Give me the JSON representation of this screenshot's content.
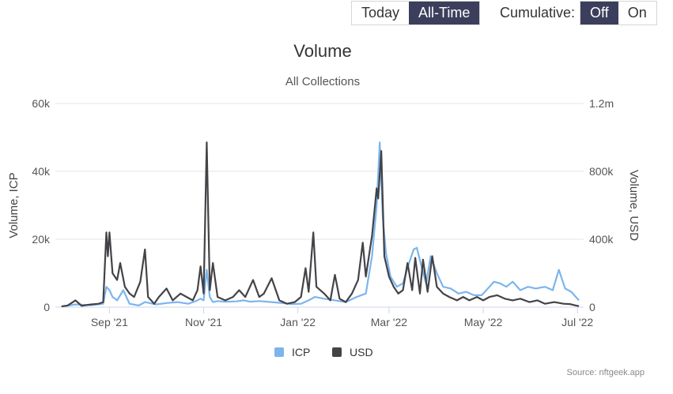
{
  "controls": {
    "range_buttons": [
      {
        "label": "Today",
        "active": false
      },
      {
        "label": "All-Time",
        "active": true
      }
    ],
    "cumulative_label": "Cumulative:",
    "cumulative_buttons": [
      {
        "label": "Off",
        "active": true
      },
      {
        "label": "On",
        "active": false
      }
    ]
  },
  "chart_data": {
    "type": "line",
    "title": "Volume",
    "subtitle": "All Collections",
    "y_left": {
      "label": "Volume, ICP",
      "ticks": [
        "0",
        "20k",
        "40k",
        "60k"
      ],
      "range": [
        0,
        60000
      ]
    },
    "y_right": {
      "label": "Volume, USD",
      "ticks": [
        "0",
        "400k",
        "800k",
        "1.2m"
      ],
      "range": [
        0,
        1200000
      ]
    },
    "x_ticks": [
      {
        "date": "2021-09-01",
        "label": "Sep '21"
      },
      {
        "date": "2021-11-01",
        "label": "Nov '21"
      },
      {
        "date": "2022-01-01",
        "label": "Jan '22"
      },
      {
        "date": "2022-03-01",
        "label": "Mar '22"
      },
      {
        "date": "2022-05-01",
        "label": "May '22"
      },
      {
        "date": "2022-07-01",
        "label": "Jul '22"
      }
    ],
    "x_range": [
      "2021-07-28",
      "2022-07-05"
    ],
    "grid": true,
    "legend_position": "bottom-center",
    "credit": "Source: nftgeek.app",
    "series": [
      {
        "name": "ICP",
        "axis": "left",
        "color": "#7cb5ec",
        "points": [
          [
            "2021-08-01",
            200
          ],
          [
            "2021-08-10",
            800
          ],
          [
            "2021-08-20",
            600
          ],
          [
            "2021-08-28",
            1000
          ],
          [
            "2021-08-30",
            6000
          ],
          [
            "2021-09-01",
            5000
          ],
          [
            "2021-09-03",
            3000
          ],
          [
            "2021-09-06",
            2000
          ],
          [
            "2021-09-10",
            5000
          ],
          [
            "2021-09-14",
            1000
          ],
          [
            "2021-09-20",
            500
          ],
          [
            "2021-09-24",
            1500
          ],
          [
            "2021-10-01",
            800
          ],
          [
            "2021-10-08",
            1200
          ],
          [
            "2021-10-15",
            1500
          ],
          [
            "2021-10-22",
            1000
          ],
          [
            "2021-10-27",
            1800
          ],
          [
            "2021-10-30",
            2500
          ],
          [
            "2021-11-01",
            2000
          ],
          [
            "2021-11-03",
            11000
          ],
          [
            "2021-11-05",
            3000
          ],
          [
            "2021-11-07",
            1500
          ],
          [
            "2021-11-10",
            1800
          ],
          [
            "2021-11-15",
            1600
          ],
          [
            "2021-11-22",
            1700
          ],
          [
            "2021-11-27",
            2000
          ],
          [
            "2021-12-01",
            1600
          ],
          [
            "2021-12-07",
            1800
          ],
          [
            "2021-12-15",
            1500
          ],
          [
            "2021-12-22",
            1200
          ],
          [
            "2021-12-28",
            900
          ],
          [
            "2022-01-03",
            1000
          ],
          [
            "2022-01-08",
            2000
          ],
          [
            "2022-01-12",
            3000
          ],
          [
            "2022-01-18",
            2500
          ],
          [
            "2022-01-25",
            2000
          ],
          [
            "2022-02-01",
            1500
          ],
          [
            "2022-02-08",
            3000
          ],
          [
            "2022-02-14",
            4000
          ],
          [
            "2022-02-18",
            15000
          ],
          [
            "2022-02-21",
            30000
          ],
          [
            "2022-02-23",
            48500
          ],
          [
            "2022-02-25",
            26000
          ],
          [
            "2022-02-27",
            16000
          ],
          [
            "2022-03-02",
            9000
          ],
          [
            "2022-03-06",
            6000
          ],
          [
            "2022-03-10",
            7000
          ],
          [
            "2022-03-14",
            13000
          ],
          [
            "2022-03-17",
            17000
          ],
          [
            "2022-03-19",
            17500
          ],
          [
            "2022-03-22",
            12000
          ],
          [
            "2022-03-25",
            7000
          ],
          [
            "2022-03-28",
            15000
          ],
          [
            "2022-04-01",
            10000
          ],
          [
            "2022-04-05",
            6000
          ],
          [
            "2022-04-10",
            5500
          ],
          [
            "2022-04-15",
            4000
          ],
          [
            "2022-04-20",
            4500
          ],
          [
            "2022-04-25",
            3500
          ],
          [
            "2022-04-30",
            3500
          ],
          [
            "2022-05-04",
            5500
          ],
          [
            "2022-05-08",
            7500
          ],
          [
            "2022-05-12",
            7000
          ],
          [
            "2022-05-16",
            6000
          ],
          [
            "2022-05-20",
            7500
          ],
          [
            "2022-05-25",
            5000
          ],
          [
            "2022-05-30",
            6000
          ],
          [
            "2022-06-04",
            5500
          ],
          [
            "2022-06-10",
            6000
          ],
          [
            "2022-06-15",
            5000
          ],
          [
            "2022-06-19",
            11000
          ],
          [
            "2022-06-23",
            5500
          ],
          [
            "2022-06-27",
            4500
          ],
          [
            "2022-06-30",
            3000
          ],
          [
            "2022-07-02",
            2000
          ]
        ]
      },
      {
        "name": "USD",
        "axis": "right",
        "color": "#434348",
        "points": [
          [
            "2021-08-01",
            4000
          ],
          [
            "2021-08-05",
            10000
          ],
          [
            "2021-08-10",
            40000
          ],
          [
            "2021-08-14",
            8000
          ],
          [
            "2021-08-20",
            16000
          ],
          [
            "2021-08-25",
            20000
          ],
          [
            "2021-08-28",
            30000
          ],
          [
            "2021-08-30",
            440000
          ],
          [
            "2021-08-31",
            300000
          ],
          [
            "2021-09-01",
            440000
          ],
          [
            "2021-09-03",
            200000
          ],
          [
            "2021-09-06",
            160000
          ],
          [
            "2021-09-08",
            260000
          ],
          [
            "2021-09-11",
            120000
          ],
          [
            "2021-09-14",
            80000
          ],
          [
            "2021-09-17",
            60000
          ],
          [
            "2021-09-21",
            150000
          ],
          [
            "2021-09-24",
            340000
          ],
          [
            "2021-09-26",
            60000
          ],
          [
            "2021-09-30",
            20000
          ],
          [
            "2021-10-03",
            60000
          ],
          [
            "2021-10-08",
            110000
          ],
          [
            "2021-10-12",
            40000
          ],
          [
            "2021-10-17",
            80000
          ],
          [
            "2021-10-21",
            60000
          ],
          [
            "2021-10-25",
            40000
          ],
          [
            "2021-10-28",
            100000
          ],
          [
            "2021-10-30",
            240000
          ],
          [
            "2021-11-01",
            80000
          ],
          [
            "2021-11-03",
            970000
          ],
          [
            "2021-11-05",
            100000
          ],
          [
            "2021-11-07",
            260000
          ],
          [
            "2021-11-10",
            60000
          ],
          [
            "2021-11-15",
            40000
          ],
          [
            "2021-11-20",
            60000
          ],
          [
            "2021-11-24",
            100000
          ],
          [
            "2021-11-28",
            60000
          ],
          [
            "2021-12-03",
            160000
          ],
          [
            "2021-12-07",
            60000
          ],
          [
            "2021-12-10",
            80000
          ],
          [
            "2021-12-15",
            170000
          ],
          [
            "2021-12-20",
            40000
          ],
          [
            "2021-12-25",
            20000
          ],
          [
            "2021-12-30",
            30000
          ],
          [
            "2022-01-03",
            60000
          ],
          [
            "2022-01-06",
            230000
          ],
          [
            "2022-01-08",
            90000
          ],
          [
            "2022-01-11",
            440000
          ],
          [
            "2022-01-13",
            120000
          ],
          [
            "2022-01-18",
            80000
          ],
          [
            "2022-01-22",
            40000
          ],
          [
            "2022-01-25",
            190000
          ],
          [
            "2022-01-28",
            50000
          ],
          [
            "2022-02-01",
            30000
          ],
          [
            "2022-02-05",
            80000
          ],
          [
            "2022-02-09",
            160000
          ],
          [
            "2022-02-12",
            380000
          ],
          [
            "2022-02-14",
            180000
          ],
          [
            "2022-02-16",
            300000
          ],
          [
            "2022-02-18",
            420000
          ],
          [
            "2022-02-21",
            700000
          ],
          [
            "2022-02-22",
            640000
          ],
          [
            "2022-02-24",
            920000
          ],
          [
            "2022-02-26",
            300000
          ],
          [
            "2022-03-01",
            180000
          ],
          [
            "2022-03-04",
            120000
          ],
          [
            "2022-03-07",
            80000
          ],
          [
            "2022-03-10",
            100000
          ],
          [
            "2022-03-13",
            260000
          ],
          [
            "2022-03-16",
            100000
          ],
          [
            "2022-03-18",
            290000
          ],
          [
            "2022-03-21",
            80000
          ],
          [
            "2022-03-23",
            280000
          ],
          [
            "2022-03-26",
            90000
          ],
          [
            "2022-03-29",
            300000
          ],
          [
            "2022-04-01",
            120000
          ],
          [
            "2022-04-05",
            80000
          ],
          [
            "2022-04-09",
            60000
          ],
          [
            "2022-04-14",
            40000
          ],
          [
            "2022-04-18",
            60000
          ],
          [
            "2022-04-22",
            40000
          ],
          [
            "2022-04-27",
            60000
          ],
          [
            "2022-05-01",
            40000
          ],
          [
            "2022-05-05",
            60000
          ],
          [
            "2022-05-10",
            70000
          ],
          [
            "2022-05-15",
            50000
          ],
          [
            "2022-05-20",
            40000
          ],
          [
            "2022-05-25",
            50000
          ],
          [
            "2022-05-31",
            30000
          ],
          [
            "2022-06-05",
            40000
          ],
          [
            "2022-06-10",
            20000
          ],
          [
            "2022-06-16",
            30000
          ],
          [
            "2022-06-22",
            20000
          ],
          [
            "2022-06-26",
            18000
          ],
          [
            "2022-06-30",
            10000
          ],
          [
            "2022-07-02",
            6000
          ]
        ]
      }
    ]
  }
}
